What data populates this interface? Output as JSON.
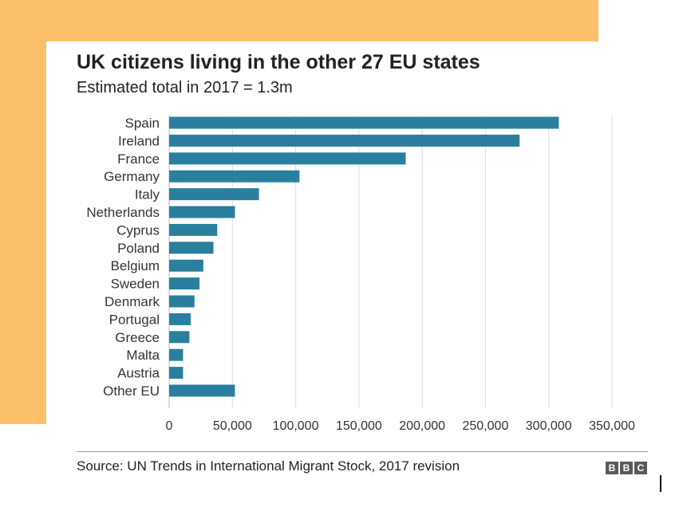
{
  "chart_data": {
    "type": "bar",
    "orientation": "horizontal",
    "title": "UK citizens living in the other 27 EU states",
    "subtitle": "Estimated total in 2017 = 1.3m",
    "categories": [
      "Spain",
      "Ireland",
      "France",
      "Germany",
      "Italy",
      "Netherlands",
      "Cyprus",
      "Poland",
      "Belgium",
      "Sweden",
      "Denmark",
      "Portugal",
      "Greece",
      "Malta",
      "Austria",
      "Other EU"
    ],
    "values": [
      308000,
      277000,
      187000,
      103000,
      71000,
      52000,
      38000,
      35000,
      27000,
      24000,
      20000,
      17000,
      16000,
      11000,
      11000,
      52000
    ],
    "xlim": [
      0,
      350000
    ],
    "xticks": [
      "0",
      "50,000",
      "100,000",
      "150,000",
      "200,000",
      "250,000",
      "300,000",
      "350,000"
    ],
    "xtick_values": [
      0,
      50000,
      100000,
      150000,
      200000,
      250000,
      300000,
      350000
    ],
    "grid": true,
    "xlabel": "",
    "ylabel": "",
    "bar_color": "#2a7f9e",
    "grid_color": "#dddddd"
  },
  "source": "Source: UN Trends in International Migrant Stock, 2017 revision",
  "brand": {
    "letters": [
      "B",
      "B",
      "C"
    ]
  },
  "colors": {
    "accent_background": "#fdc06a",
    "bar": "#2a7f9e",
    "logo_box": "#5a5a5a"
  }
}
